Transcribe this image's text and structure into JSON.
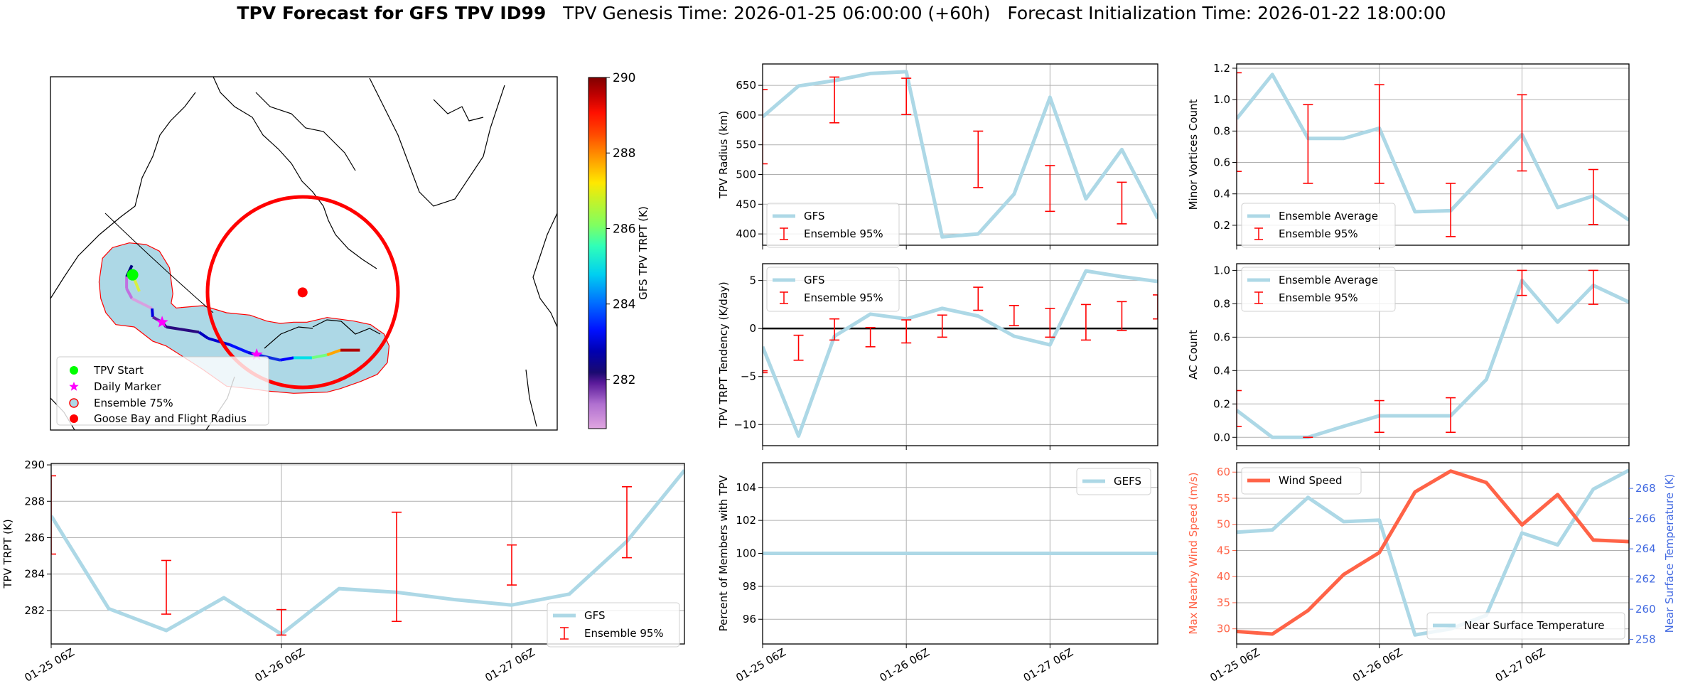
{
  "title": {
    "main": "TPV Forecast for GFS TPV ID99",
    "genesis": "TPV Genesis Time: 2026-01-25 06:00:00 (+60h)",
    "init": "Forecast Initialization Time: 2026-01-22 18:00:00"
  },
  "colors": {
    "gfs_line": "#add8e6",
    "ensemble_bar": "#ff0000",
    "wind": "#ff6347",
    "temp_axis": "#4169e1",
    "flight_radius": "#ff0000",
    "ensemble_fill": "#add8e6"
  },
  "map": {
    "legend": [
      "TPV Start",
      "Daily Marker",
      "Ensemble 75%",
      "Goose Bay and Flight Radius"
    ],
    "colorbar": {
      "label": "GFS TPV TRPT (K)",
      "range": [
        280.7,
        290
      ],
      "ticks": [
        282,
        284,
        286,
        288,
        290
      ],
      "tick_labels": [
        "282",
        "284",
        "286",
        "288",
        "290"
      ]
    }
  },
  "chart_data": [
    {
      "id": "radius",
      "type": "line",
      "ylabel": "TPV Radius (km)",
      "x_hours": [
        0,
        6,
        12,
        18,
        24,
        30,
        36,
        42,
        48,
        54,
        60,
        66
      ],
      "xticks_hours": [
        0,
        24,
        48
      ],
      "xtick_labels": [
        "01-25 06Z",
        "01-26 06Z",
        "01-27 06Z"
      ],
      "xlim": [
        0,
        66
      ],
      "ylim": [
        381,
        686
      ],
      "yticks": [
        400,
        450,
        500,
        550,
        600,
        650
      ],
      "ytick_labels": [
        "400",
        "450",
        "500",
        "550",
        "600",
        "650"
      ],
      "series": [
        {
          "name": "GFS",
          "values": [
            597,
            649,
            658,
            670,
            673,
            395,
            400,
            467,
            630,
            459,
            542,
            426
          ]
        }
      ],
      "ensemble": {
        "name": "Ensemble 95%",
        "x_hours": [
          0,
          12,
          24,
          36,
          48,
          60
        ],
        "low": [
          518,
          587,
          601,
          478,
          438,
          417
        ],
        "high": [
          643,
          664,
          662,
          573,
          515,
          487
        ]
      },
      "legend": "lower-left",
      "grid": true
    },
    {
      "id": "tendency",
      "type": "line",
      "ylabel": "TPV TRPT Tendency (K/day)",
      "x_hours": [
        0,
        6,
        12,
        18,
        24,
        30,
        36,
        42,
        48,
        54,
        60,
        66
      ],
      "xticks_hours": [
        0,
        24,
        48
      ],
      "xtick_labels": [
        "01-25 06Z",
        "01-26 06Z",
        "01-27 06Z"
      ],
      "xlim": [
        0,
        66
      ],
      "ylim": [
        -12.2,
        6.75
      ],
      "yticks": [
        -10,
        -5,
        0,
        5
      ],
      "ytick_labels": [
        "−10",
        "−5",
        "0",
        "5"
      ],
      "series": [
        {
          "name": "GFS",
          "values": [
            -1.9,
            -11.2,
            -0.8,
            1.5,
            1.0,
            2.1,
            1.3,
            -0.8,
            -1.7,
            6.0,
            5.4,
            4.9
          ]
        }
      ],
      "ensemble": {
        "name": "Ensemble 95%",
        "x_hours": [
          0,
          6,
          12,
          18,
          24,
          30,
          36,
          42,
          48,
          54,
          60,
          66
        ],
        "low": [
          -4.6,
          -3.3,
          -1.2,
          -1.9,
          -1.5,
          -0.9,
          1.9,
          0.3,
          -0.9,
          -1.2,
          -0.2,
          1.0
        ],
        "high": [
          -4.4,
          -0.7,
          1.0,
          0.1,
          0.9,
          1.4,
          4.3,
          2.4,
          2.1,
          2.5,
          2.8,
          3.5
        ]
      },
      "zero_line": true,
      "legend": "upper-left",
      "grid": true
    },
    {
      "id": "trpt",
      "type": "line",
      "ylabel": "TPV TRPT (K)",
      "x_hours": [
        0,
        6,
        12,
        18,
        24,
        30,
        36,
        42,
        48,
        54,
        60,
        66
      ],
      "xticks_hours": [
        0,
        24,
        48
      ],
      "xtick_labels": [
        "01-25 06Z",
        "01-26 06Z",
        "01-27 06Z"
      ],
      "xlim": [
        0,
        66
      ],
      "ylim": [
        280.16,
        290.08
      ],
      "yticks": [
        282,
        284,
        286,
        288,
        290
      ],
      "ytick_labels": [
        "282",
        "284",
        "286",
        "288",
        "290"
      ],
      "series": [
        {
          "name": "GFS",
          "values": [
            287.2,
            282.1,
            280.9,
            282.7,
            280.7,
            283.2,
            283.0,
            282.6,
            282.3,
            282.9,
            285.8,
            289.7
          ]
        }
      ],
      "ensemble": {
        "name": "Ensemble 95%",
        "x_hours": [
          0,
          12,
          24,
          36,
          48,
          60
        ],
        "low": [
          285.1,
          281.8,
          280.65,
          281.4,
          283.4,
          284.9
        ],
        "high": [
          289.4,
          284.75,
          282.05,
          287.4,
          285.6,
          288.8
        ]
      },
      "legend": "lower-right",
      "grid": true
    },
    {
      "id": "percent",
      "type": "line",
      "ylabel": "Percent of Members with TPV",
      "x_hours": [
        0,
        6,
        12,
        18,
        24,
        30,
        36,
        42,
        48,
        54,
        60,
        66
      ],
      "xticks_hours": [
        0,
        24,
        48
      ],
      "xtick_labels": [
        "01-25 06Z",
        "01-26 06Z",
        "01-27 06Z"
      ],
      "xlim": [
        0,
        66
      ],
      "ylim": [
        94.5,
        105.5
      ],
      "yticks": [
        96,
        98,
        100,
        102,
        104
      ],
      "ytick_labels": [
        "96",
        "98",
        "100",
        "102",
        "104"
      ],
      "series": [
        {
          "name": "GEFS",
          "values": [
            100,
            100,
            100,
            100,
            100,
            100,
            100,
            100,
            100,
            100,
            100,
            100
          ]
        }
      ],
      "legend": "upper-right",
      "grid": true
    },
    {
      "id": "minor",
      "type": "line",
      "ylabel": "Minor Vortices Count",
      "x_hours": [
        0,
        6,
        12,
        18,
        24,
        30,
        36,
        42,
        48,
        54,
        60,
        66
      ],
      "xticks_hours": [
        0,
        24,
        48
      ],
      "xtick_labels": [
        "01-25 06Z",
        "01-26 06Z",
        "01-27 06Z"
      ],
      "xlim": [
        0,
        66
      ],
      "ylim": [
        0.073,
        1.227
      ],
      "yticks": [
        0.2,
        0.4,
        0.6,
        0.8,
        1.0,
        1.2
      ],
      "ytick_labels": [
        "0.2",
        "0.4",
        "0.6",
        "0.8",
        "1.0",
        "1.2"
      ],
      "series": [
        {
          "name": "Ensemble Average",
          "values": [
            0.878,
            1.16,
            0.753,
            0.753,
            0.818,
            0.286,
            0.293,
            0.535,
            0.778,
            0.313,
            0.387,
            0.233
          ]
        }
      ],
      "ensemble": {
        "name": "Ensemble 95%",
        "x_hours": [
          0,
          12,
          24,
          36,
          48,
          60
        ],
        "low": [
          0.543,
          0.467,
          0.467,
          0.128,
          0.546,
          0.205
        ],
        "high": [
          1.171,
          0.968,
          1.095,
          0.467,
          1.031,
          0.555
        ]
      },
      "legend": "lower-left",
      "grid": true
    },
    {
      "id": "ac",
      "type": "line",
      "ylabel": "AC Count",
      "x_hours": [
        0,
        6,
        12,
        18,
        24,
        30,
        36,
        42,
        48,
        54,
        60,
        66
      ],
      "xticks_hours": [
        0,
        24,
        48
      ],
      "xtick_labels": [
        "01-25 06Z",
        "01-26 06Z",
        "01-27 06Z"
      ],
      "xlim": [
        0,
        66
      ],
      "ylim": [
        -0.05,
        1.04
      ],
      "yticks": [
        0,
        0.2,
        0.4,
        0.6,
        0.8,
        1.0
      ],
      "ytick_labels": [
        "0.0",
        "0.2",
        "0.4",
        "0.6",
        "0.8",
        "1.0"
      ],
      "series": [
        {
          "name": "Ensemble Average",
          "values": [
            0.162,
            0.0,
            0.0,
            0.066,
            0.129,
            0.129,
            0.129,
            0.346,
            0.94,
            0.69,
            0.91,
            0.81
          ]
        }
      ],
      "ensemble": {
        "name": "Ensemble 95%",
        "x_hours": [
          0,
          12,
          24,
          36,
          48,
          60
        ],
        "low": [
          0.065,
          0.0,
          0.03,
          0.03,
          0.85,
          0.797
        ],
        "high": [
          0.28,
          0.0,
          0.22,
          0.237,
          1.0,
          1.0
        ]
      },
      "legend": "upper-left",
      "grid": true
    },
    {
      "id": "wind",
      "type": "line",
      "ylabel": "Max Nearby Wind Speed (m/s)",
      "x_hours": [
        0,
        6,
        12,
        18,
        24,
        30,
        36,
        42,
        48,
        54,
        60,
        66
      ],
      "xticks_hours": [
        0,
        24,
        48
      ],
      "xtick_labels": [
        "01-25 06Z",
        "01-26 06Z",
        "01-27 06Z"
      ],
      "xlim": [
        0,
        66
      ],
      "ylim": [
        27.1,
        61.8
      ],
      "yticks": [
        30,
        35,
        40,
        45,
        50,
        55,
        60
      ],
      "ytick_labels": [
        "30",
        "35",
        "40",
        "45",
        "50",
        "55",
        "60"
      ],
      "series": [
        {
          "name": "Wind Speed",
          "values": [
            29.5,
            29.0,
            33.5,
            40.4,
            44.6,
            56.2,
            60.2,
            58.0,
            49.9,
            55.7,
            47.0,
            46.7
          ]
        }
      ],
      "secondary": {
        "ylabel": "Near Surface Temperature (K)",
        "ylim": [
          257.7,
          269.7
        ],
        "yticks": [
          258,
          260,
          262,
          264,
          266,
          268
        ],
        "ytick_labels": [
          "258",
          "260",
          "262",
          "264",
          "266",
          "268"
        ],
        "series": [
          {
            "name": "Near Surface Temperature",
            "values": [
              265.1,
              265.25,
              267.4,
              265.8,
              265.9,
              258.3,
              258.7,
              259.6,
              265.05,
              264.26,
              267.95,
              269.2
            ]
          }
        ],
        "legend": "lower-right"
      },
      "legend": "upper-left",
      "grid": true
    }
  ]
}
